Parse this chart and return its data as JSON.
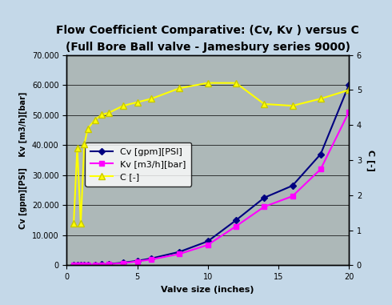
{
  "title": "Flow Coefficient Comparative: (Cv, Kv ) versus C",
  "subtitle": "(Full Bore Ball valve - Jamesbury series 9000)",
  "xlabel": "Valve size (inches)",
  "ylabel_left": "Cv [gpm][PSI]    Kv [m3/h][bar]",
  "ylabel_right": "C [-]",
  "background_color": "#c4d8e8",
  "plot_bg_color": "#adb8b8",
  "valve_sizes": [
    0.5,
    0.75,
    1.0,
    1.25,
    1.5,
    2.0,
    2.5,
    3.0,
    4.0,
    5.0,
    6.0,
    8.0,
    10.0,
    12.0,
    14.0,
    16.0,
    18.0,
    20.0
  ],
  "Cv": [
    10,
    20,
    35,
    65,
    105,
    190,
    300,
    490,
    900,
    1500,
    2300,
    4500,
    8000,
    15000,
    22500,
    26500,
    37000,
    60000
  ],
  "Kv": [
    8,
    17,
    30,
    55,
    90,
    160,
    255,
    415,
    770,
    1300,
    1950,
    3800,
    6800,
    13000,
    19500,
    23000,
    32000,
    51000
  ],
  "C_vals": [
    1.2,
    3.35,
    1.2,
    3.45,
    3.9,
    4.15,
    4.3,
    4.35,
    4.55,
    4.65,
    4.75,
    5.05,
    5.2,
    5.2,
    4.6,
    4.55,
    4.75,
    5.0
  ],
  "ylim_left": [
    0,
    70000
  ],
  "ylim_right": [
    0,
    6
  ],
  "xlim": [
    0,
    20
  ],
  "cv_color": "#000080",
  "kv_color": "#ff00ff",
  "c_color": "#ffff00",
  "title_fontsize": 10,
  "subtitle_fontsize": 8,
  "axis_label_fontsize": 8,
  "tick_fontsize": 7,
  "legend_fontsize": 8
}
